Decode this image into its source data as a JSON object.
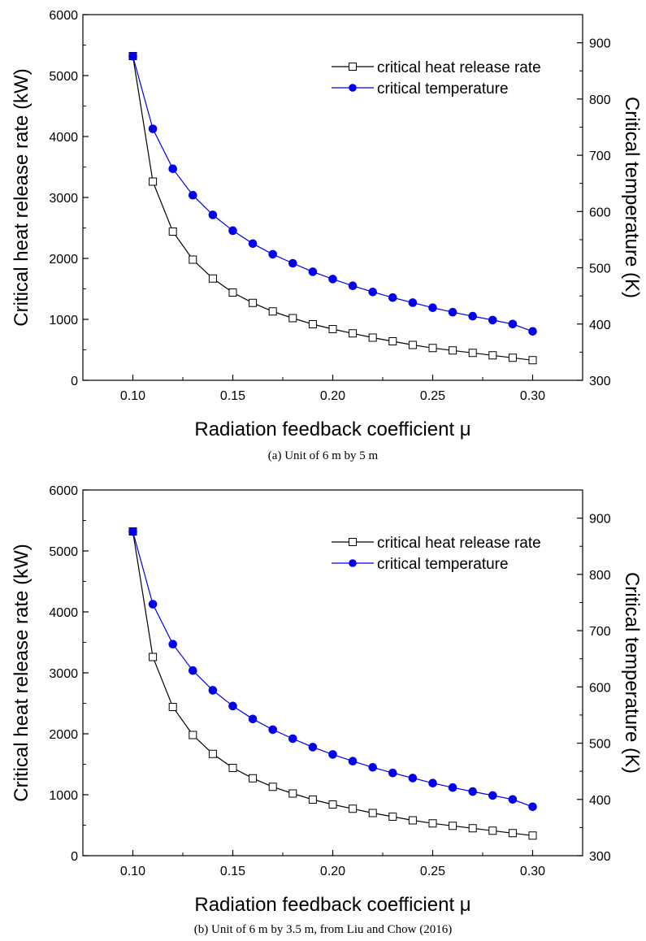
{
  "chart_data": [
    {
      "type": "line",
      "caption": "(a) Unit of 6 m by 5 m",
      "xlabel": "Radiation feedback coefficient μ",
      "ylabel_left": "Critical heat release rate (kW)",
      "ylabel_right": "Critical temperature (K)",
      "xlim": [
        0.075,
        0.325
      ],
      "ylim_left": [
        0,
        6000
      ],
      "ylim_right": [
        300,
        950
      ],
      "x_ticks": [
        "0.10",
        "0.15",
        "0.20",
        "0.25",
        "0.30"
      ],
      "y_left_ticks": [
        "0",
        "1000",
        "2000",
        "3000",
        "4000",
        "5000",
        "6000"
      ],
      "y_right_ticks": [
        "300",
        "400",
        "500",
        "600",
        "700",
        "800",
        "900"
      ],
      "legend_position": "top-right",
      "x": [
        0.1,
        0.11,
        0.12,
        0.13,
        0.14,
        0.15,
        0.16,
        0.17,
        0.18,
        0.19,
        0.2,
        0.21,
        0.22,
        0.23,
        0.24,
        0.25,
        0.26,
        0.27,
        0.28,
        0.29,
        0.3
      ],
      "series": [
        {
          "name": "critical heat release rate",
          "axis": "left",
          "color": "#000000",
          "marker": "open-square",
          "values": [
            5320,
            3260,
            2440,
            1980,
            1670,
            1440,
            1270,
            1130,
            1020,
            920,
            840,
            770,
            700,
            640,
            580,
            530,
            490,
            450,
            410,
            370,
            330
          ]
        },
        {
          "name": "critical temperature",
          "axis": "right",
          "color": "#0000ee",
          "marker": "filled-circle",
          "values": [
            876,
            747,
            676,
            629,
            594,
            566,
            543,
            524,
            508,
            493,
            480,
            468,
            457,
            447,
            438,
            429,
            421,
            414,
            407,
            400,
            387
          ]
        }
      ]
    },
    {
      "type": "line",
      "caption": "(b) Unit of 6 m by 3.5 m, from Liu and Chow (2016)",
      "xlabel": "Radiation feedback coefficient μ",
      "ylabel_left": "Critical heat release rate (kW)",
      "ylabel_right": "Critical temperature (K)",
      "xlim": [
        0.075,
        0.325
      ],
      "ylim_left": [
        0,
        6000
      ],
      "ylim_right": [
        300,
        950
      ],
      "x_ticks": [
        "0.10",
        "0.15",
        "0.20",
        "0.25",
        "0.30"
      ],
      "y_left_ticks": [
        "0",
        "1000",
        "2000",
        "3000",
        "4000",
        "5000",
        "6000"
      ],
      "y_right_ticks": [
        "300",
        "400",
        "500",
        "600",
        "700",
        "800",
        "900"
      ],
      "legend_position": "top-right",
      "x": [
        0.1,
        0.11,
        0.12,
        0.13,
        0.14,
        0.15,
        0.16,
        0.17,
        0.18,
        0.19,
        0.2,
        0.21,
        0.22,
        0.23,
        0.24,
        0.25,
        0.26,
        0.27,
        0.28,
        0.29,
        0.3
      ],
      "series": [
        {
          "name": "critical heat release rate",
          "axis": "left",
          "color": "#000000",
          "marker": "open-square",
          "values": [
            5320,
            3260,
            2440,
            1980,
            1670,
            1440,
            1270,
            1130,
            1020,
            920,
            840,
            770,
            700,
            640,
            580,
            530,
            490,
            450,
            410,
            370,
            330
          ]
        },
        {
          "name": "critical temperature",
          "axis": "right",
          "color": "#0000ee",
          "marker": "filled-circle",
          "values": [
            876,
            747,
            676,
            629,
            594,
            566,
            543,
            524,
            508,
            493,
            480,
            468,
            457,
            447,
            438,
            429,
            421,
            414,
            407,
            400,
            387
          ]
        }
      ]
    }
  ]
}
